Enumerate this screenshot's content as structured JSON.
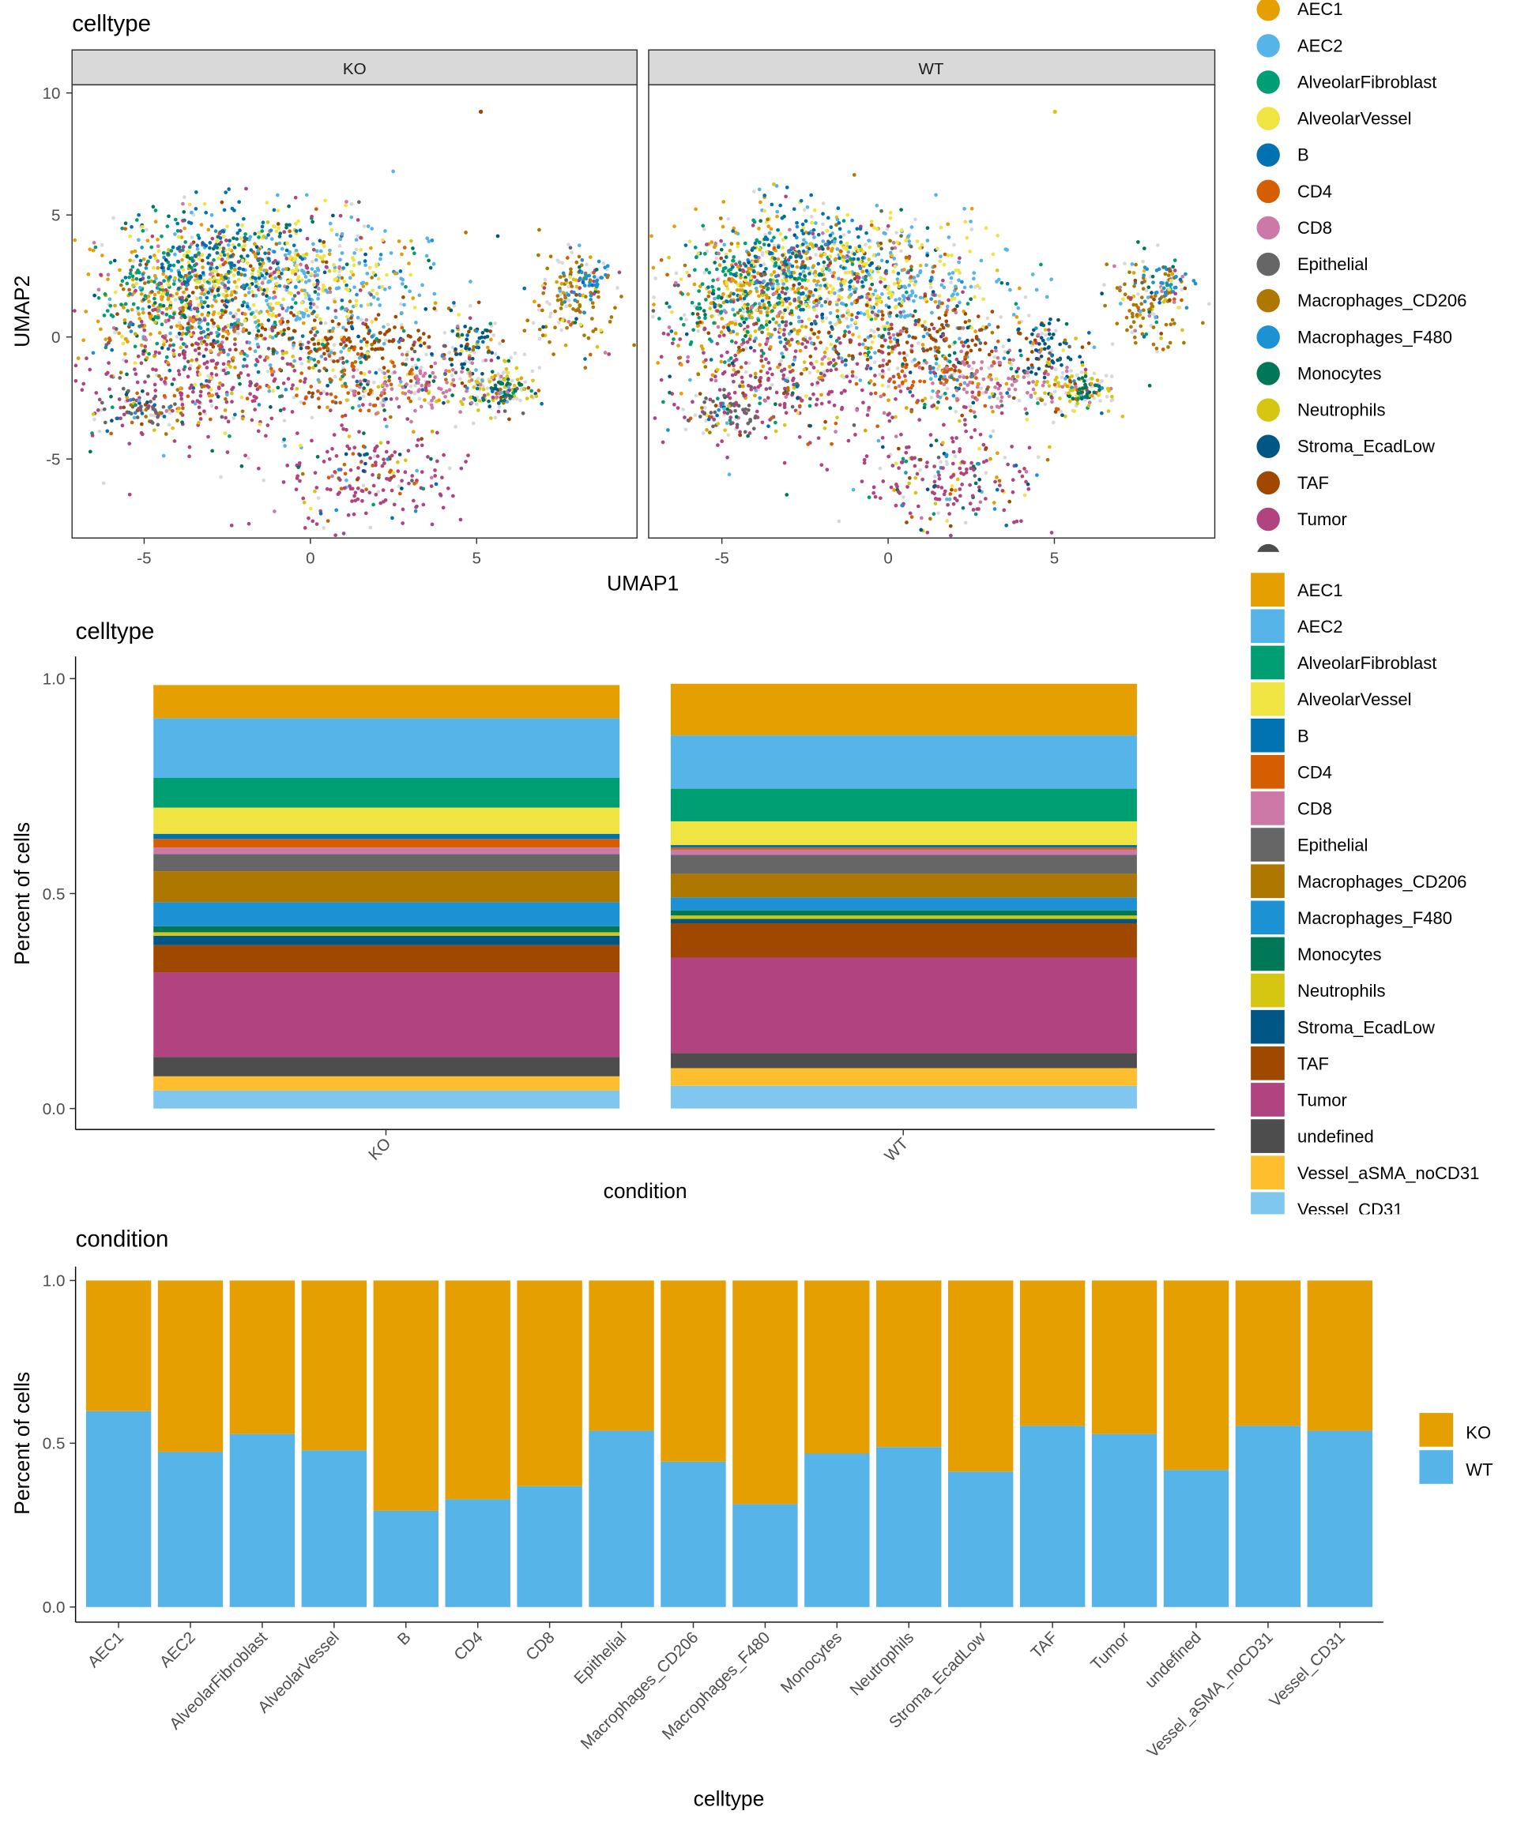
{
  "colors": {
    "AEC1": "#E69F00",
    "AEC2": "#56B4E9",
    "AlveolarFibroblast": "#009E73",
    "AlveolarVessel": "#F0E442",
    "B": "#0072B2",
    "CD4": "#D55E00",
    "CD8": "#CC79A7",
    "Epithelial": "#666666",
    "Macrophages_CD206": "#AD7700",
    "Macrophages_F480": "#1C91D4",
    "Monocytes": "#007756",
    "Neutrophils": "#D5C711",
    "Stroma_EcadLow": "#005685",
    "TAF": "#A04700",
    "Tumor": "#B14380",
    "undefined": "#4D4D4D",
    "Vessel_aSMA_noCD31": "#FFBE2D",
    "Vessel_CD31": "#80C7EF",
    "background_points": "#D9D9D9",
    "strip_fill": "#D9D9D9"
  },
  "umap": {
    "title": "celltype",
    "xlabel": "UMAP1",
    "ylabel": "UMAP2",
    "facets": [
      "KO",
      "WT"
    ],
    "x_ticks": [
      "-5",
      "0",
      "5"
    ],
    "y_ticks": [
      "-5",
      "0",
      "5",
      "10"
    ],
    "legend": [
      "AEC1",
      "AEC2",
      "AlveolarFibroblast",
      "AlveolarVessel",
      "B",
      "CD4",
      "CD8",
      "Epithelial",
      "Macrophages_CD206",
      "Macrophages_F480",
      "Monocytes",
      "Neutrophils",
      "Stroma_EcadLow",
      "TAF",
      "Tumor"
    ]
  },
  "stack": {
    "title": "celltype",
    "xlabel": "condition",
    "ylabel": "Percent of cells",
    "y_ticks": [
      "0.0",
      "0.5",
      "1.0"
    ],
    "legend": [
      "AEC1",
      "AEC2",
      "AlveolarFibroblast",
      "AlveolarVessel",
      "B",
      "CD4",
      "CD8",
      "Epithelial",
      "Macrophages_CD206",
      "Macrophages_F480",
      "Monocytes",
      "Neutrophils",
      "Stroma_EcadLow",
      "TAF",
      "Tumor",
      "undefined",
      "Vessel_aSMA_noCD31",
      "Vessel_CD31"
    ]
  },
  "cond": {
    "title": "condition",
    "xlabel": "celltype",
    "ylabel": "Percent of cells",
    "y_ticks": [
      "0.0",
      "0.5",
      "1.0"
    ],
    "legend": [
      "KO",
      "WT"
    ]
  },
  "chart_data": [
    {
      "type": "scatter",
      "title": "celltype",
      "xlabel": "UMAP1",
      "ylabel": "UMAP2",
      "facets": [
        "KO",
        "WT"
      ],
      "xlim": [
        -7,
        10
      ],
      "ylim": [
        -8,
        10.5
      ],
      "clusters": [
        {
          "label": "Tumor",
          "center": [
            -3.0,
            -1.5
          ],
          "spread": [
            2.0,
            1.4
          ]
        },
        {
          "label": "Tumor",
          "center": [
            2.0,
            -5.5
          ],
          "spread": [
            1.3,
            1.1
          ]
        },
        {
          "label": "Epithelial",
          "center": [
            -4.8,
            -2.8
          ],
          "spread": [
            0.6,
            0.4
          ]
        },
        {
          "label": "AEC2",
          "center": [
            0.0,
            2.2
          ],
          "spread": [
            2.0,
            1.4
          ]
        },
        {
          "label": "AEC1",
          "center": [
            -3.8,
            1.8
          ],
          "spread": [
            1.5,
            1.5
          ]
        },
        {
          "label": "AlveolarFibroblast",
          "center": [
            -4.2,
            2.0
          ],
          "spread": [
            1.0,
            1.2
          ]
        },
        {
          "label": "AlveolarVessel",
          "center": [
            -1.0,
            2.8
          ],
          "spread": [
            1.8,
            1.2
          ]
        },
        {
          "label": "TAF",
          "center": [
            1.5,
            0.2
          ],
          "spread": [
            1.8,
            0.6
          ]
        },
        {
          "label": "Macrophages_CD206",
          "center": [
            8.0,
            1.6
          ],
          "spread": [
            0.6,
            1.0
          ]
        },
        {
          "label": "Macrophages_F480",
          "center": [
            8.5,
            2.4
          ],
          "spread": [
            0.35,
            0.5
          ]
        },
        {
          "label": "Stroma_EcadLow",
          "center": [
            5.0,
            -0.4
          ],
          "spread": [
            0.5,
            0.7
          ]
        },
        {
          "label": "B",
          "center": [
            -2.5,
            3.5
          ],
          "spread": [
            1.2,
            1.0
          ]
        },
        {
          "label": "Neutrophils",
          "center": [
            5.8,
            -2.0
          ],
          "spread": [
            0.6,
            0.5
          ]
        },
        {
          "label": "Monocytes",
          "center": [
            6.0,
            -1.9
          ],
          "spread": [
            0.3,
            0.3
          ]
        },
        {
          "label": "CD4",
          "center": [
            1.5,
            -1.5
          ],
          "spread": [
            1.0,
            0.6
          ]
        },
        {
          "label": "CD8",
          "center": [
            3.5,
            -1.8
          ],
          "spread": [
            1.0,
            0.6
          ]
        }
      ],
      "outliers": [
        {
          "facet": "KO",
          "x": 5.3,
          "y": 9.4,
          "label": "TAF"
        },
        {
          "facet": "WT",
          "x": 5.2,
          "y": 9.4,
          "label": "Neutrophils"
        }
      ]
    },
    {
      "type": "bar",
      "stacked": true,
      "title": "celltype",
      "xlabel": "condition",
      "ylabel": "Percent of cells",
      "categories": [
        "KO",
        "WT"
      ],
      "ylim": [
        0,
        1
      ],
      "series": [
        {
          "name": "AEC1",
          "values": [
            0.077,
            0.12
          ]
        },
        {
          "name": "AEC2",
          "values": [
            0.139,
            0.124
          ]
        },
        {
          "name": "AlveolarFibroblast",
          "values": [
            0.069,
            0.076
          ]
        },
        {
          "name": "AlveolarVessel",
          "values": [
            0.061,
            0.055
          ]
        },
        {
          "name": "B",
          "values": [
            0.012,
            0.006
          ]
        },
        {
          "name": "CD4",
          "values": [
            0.02,
            0.005
          ]
        },
        {
          "name": "CD8",
          "values": [
            0.015,
            0.012
          ]
        },
        {
          "name": "Epithelial",
          "values": [
            0.04,
            0.044
          ]
        },
        {
          "name": "Macrophages_CD206",
          "values": [
            0.072,
            0.055
          ]
        },
        {
          "name": "Macrophages_F480",
          "values": [
            0.056,
            0.03
          ]
        },
        {
          "name": "Monocytes",
          "values": [
            0.014,
            0.012
          ]
        },
        {
          "name": "Neutrophils",
          "values": [
            0.008,
            0.008
          ]
        },
        {
          "name": "Stroma_EcadLow",
          "values": [
            0.022,
            0.01
          ]
        },
        {
          "name": "TAF",
          "values": [
            0.063,
            0.08
          ]
        },
        {
          "name": "Tumor",
          "values": [
            0.197,
            0.222
          ]
        },
        {
          "name": "undefined",
          "values": [
            0.045,
            0.035
          ]
        },
        {
          "name": "Vessel_aSMA_noCD31",
          "values": [
            0.033,
            0.041
          ]
        },
        {
          "name": "Vessel_CD31",
          "values": [
            0.042,
            0.053
          ]
        }
      ]
    },
    {
      "type": "bar",
      "stacked": true,
      "title": "condition",
      "xlabel": "celltype",
      "ylabel": "Percent of cells",
      "ylim": [
        0,
        1
      ],
      "categories": [
        "AEC1",
        "AEC2",
        "AlveolarFibroblast",
        "AlveolarVessel",
        "B",
        "CD4",
        "CD8",
        "Epithelial",
        "Macrophages_CD206",
        "Macrophages_F480",
        "Monocytes",
        "Neutrophils",
        "Stroma_EcadLow",
        "TAF",
        "Tumor",
        "undefined",
        "Vessel_aSMA_noCD31",
        "Vessel_CD31"
      ],
      "series": [
        {
          "name": "KO",
          "values": [
            0.4,
            0.525,
            0.47,
            0.52,
            0.705,
            0.67,
            0.63,
            0.46,
            0.555,
            0.685,
            0.53,
            0.51,
            0.585,
            0.445,
            0.47,
            0.58,
            0.445,
            0.46
          ]
        },
        {
          "name": "WT",
          "values": [
            0.6,
            0.475,
            0.53,
            0.48,
            0.295,
            0.33,
            0.37,
            0.54,
            0.445,
            0.315,
            0.47,
            0.49,
            0.415,
            0.555,
            0.53,
            0.42,
            0.555,
            0.54
          ]
        }
      ]
    }
  ]
}
